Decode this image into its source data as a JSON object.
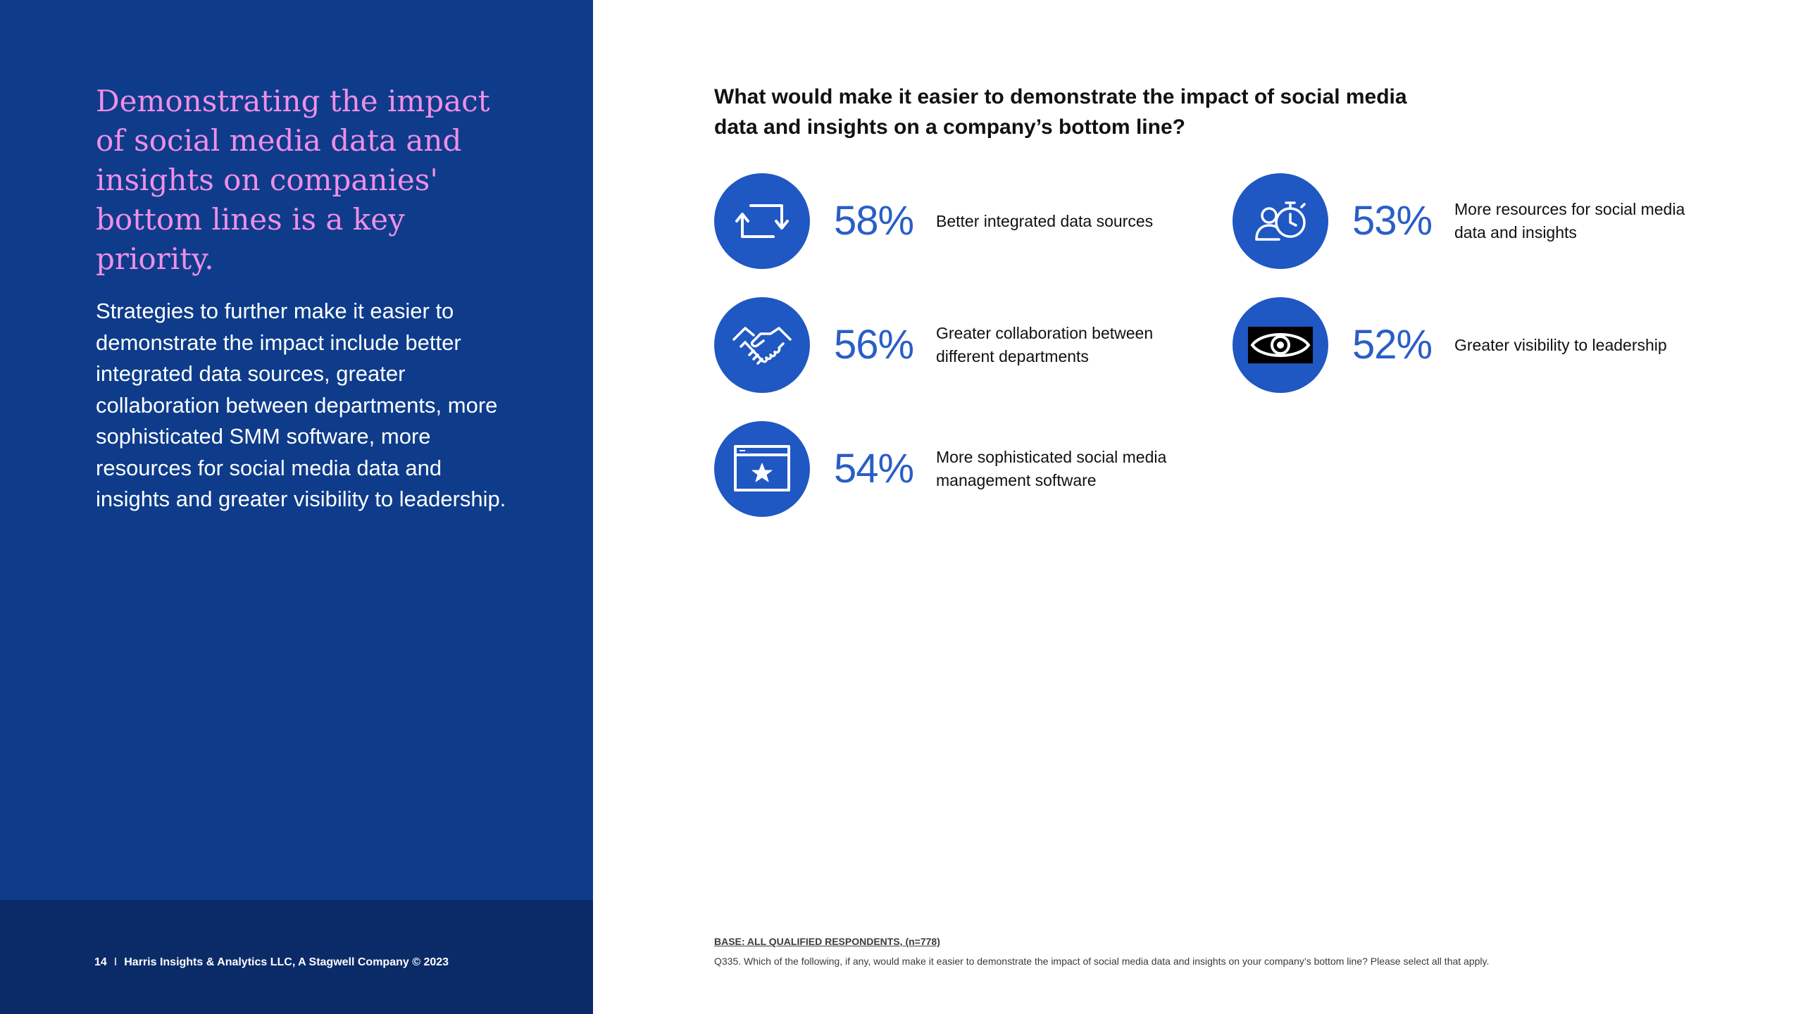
{
  "left": {
    "headline": "Demonstrating the impact of social media data and insights on companies' bottom lines is a key priority.",
    "body": "Strategies to further make it easier to demonstrate the impact include better integrated data sources, greater collaboration between departments, more sophisticated SMM software, more resources for social media data and insights and greater visibility to leadership.",
    "footer_page": "14",
    "footer_sep": "I",
    "footer_company": "Harris Insights & Analytics LLC, A Stagwell Company © 2023"
  },
  "question": "What would make it easier to demonstrate the impact of social media data and insights on a company’s bottom line?",
  "stats": [
    {
      "value": "58%",
      "label": "Better integrated data sources",
      "icon": "sync-arrows-icon"
    },
    {
      "value": "56%",
      "label": "Greater collaboration between different departments",
      "icon": "handshake-icon"
    },
    {
      "value": "54%",
      "label": "More sophisticated social media management software",
      "icon": "browser-star-icon"
    },
    {
      "value": "53%",
      "label": "More resources for social media data and insights",
      "icon": "people-stopwatch-icon"
    },
    {
      "value": "52%",
      "label": "Greater visibility to leadership",
      "icon": "eye-icon"
    }
  ],
  "notes": {
    "base": "BASE: ALL QUALIFIED RESPONDENTS, (n=778)",
    "question": "Q335. Which of the following, if any, would make it easier to demonstrate the impact of social media data and insights on your company’s bottom line? Please select all that apply."
  },
  "colors": {
    "panel": "#0e3c8b",
    "panel_footer": "#0b2b68",
    "headline": "#f08ee6",
    "icon_circle": "#1f57c3",
    "percent": "#2a5ec7"
  }
}
